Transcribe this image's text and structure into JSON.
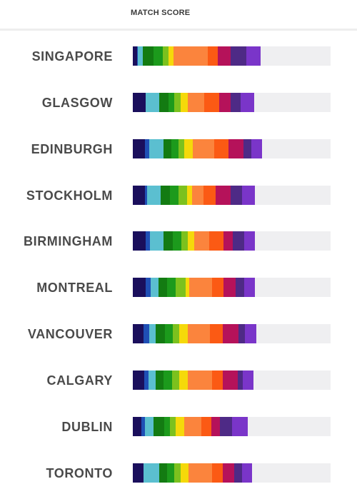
{
  "header": {
    "title": "MATCH SCORE"
  },
  "chart_data": {
    "type": "bar",
    "orientation": "horizontal-stacked",
    "title": "MATCH SCORE",
    "scale_max": 100,
    "colors": [
      "#1a0f5c",
      "#1f4fb5",
      "#5bbfd0",
      "#137b12",
      "#1c9a1c",
      "#7cc11e",
      "#f5d90a",
      "#fb843d",
      "#fb5a14",
      "#b5125a",
      "#4e2a86",
      "#7a35c9"
    ],
    "categories": [
      "SINGAPORE",
      "GLASGOW",
      "EDINBURGH",
      "STOCKHOLM",
      "BIRMINGHAM",
      "MONTREAL",
      "VANCOUVER",
      "CALGARY",
      "DUBLIN",
      "TORONTO"
    ],
    "segments": [
      [
        2.2,
        0.4,
        2.5,
        5.4,
        4.7,
        2.9,
        2.5,
        17.3,
        5.1,
        6.5,
        7.9,
        7.2
      ],
      [
        6.5,
        0,
        6.9,
        4.7,
        2.9,
        3.2,
        3.6,
        8.3,
        7.6,
        5.8,
        5.1,
        6.9
      ],
      [
        6.1,
        2.2,
        7.2,
        4.0,
        3.6,
        2.9,
        4.3,
        10.8,
        7.2,
        7.6,
        4.0,
        5.4
      ],
      [
        6.1,
        1.1,
        6.9,
        4.7,
        4.3,
        4.3,
        2.5,
        5.8,
        6.1,
        7.6,
        5.8,
        6.5
      ],
      [
        6.5,
        2.2,
        6.9,
        4.7,
        4.3,
        3.2,
        3.2,
        7.6,
        7.2,
        4.7,
        5.8,
        5.4
      ],
      [
        6.5,
        2.5,
        4.0,
        4.3,
        4.3,
        5.1,
        1.8,
        11.6,
        5.8,
        6.1,
        4.3,
        5.4
      ],
      [
        5.4,
        2.9,
        3.2,
        4.7,
        4.0,
        3.2,
        4.3,
        11.2,
        6.5,
        7.9,
        3.2,
        6.1
      ],
      [
        5.8,
        2.2,
        3.6,
        4.0,
        4.3,
        3.6,
        4.3,
        12.3,
        5.4,
        7.6,
        2.5,
        5.4
      ],
      [
        4.3,
        1.8,
        4.3,
        5.4,
        2.9,
        2.9,
        4.3,
        8.7,
        5.1,
        4.3,
        6.1,
        7.9
      ],
      [
        5.4,
        0,
        7.9,
        4.0,
        3.6,
        3.2,
        4.0,
        11.9,
        5.4,
        5.8,
        4.0,
        5.1
      ]
    ]
  }
}
